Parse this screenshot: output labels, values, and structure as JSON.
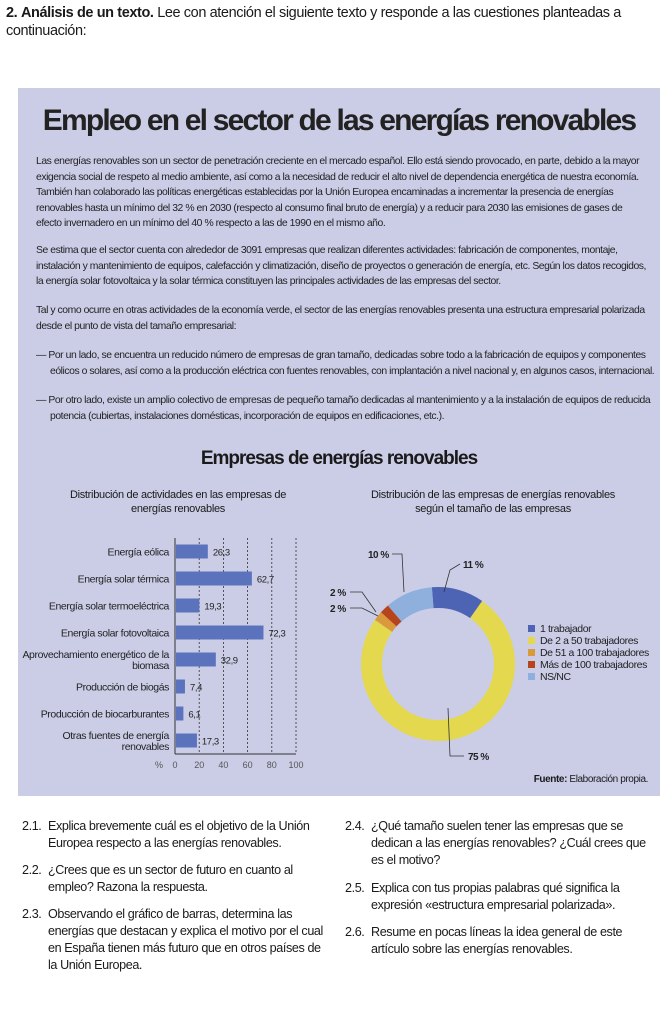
{
  "exercise": {
    "number": "2.",
    "heading": "Análisis de un texto.",
    "instruction": "Lee con atención el siguiente texto y responde a las cuestiones planteadas a continuación:"
  },
  "article": {
    "title": "Empleo en el sector de las energías renovables",
    "paragraphs": [
      "Las energías renovables son un sector de penetración creciente en el mercado español. Ello está siendo provocado, en parte, debido a la mayor exigencia social de respeto al medio ambiente, así como a la necesidad de reducir el alto nivel de dependencia energética de nuestra economía. También han colaborado las políticas energéticas establecidas por la Unión Europea encaminadas a incrementar la presencia de energías renovables hasta un mínimo del 32 % en 2030 (respecto al consumo final bruto de energía) y a reducir para 2030 las emisiones de gases de efecto invernadero en un mínimo del 40 % respecto a las de 1990 en el mismo año.",
      "Se estima que el sector cuenta con alrededor de 3091 empresas que realizan diferentes actividades: fabricación de componentes, montaje, instalación y mantenimiento de equipos, calefacción y climatización, diseño de proyectos o generación de energía, etc. Según los datos recogidos, la energía solar fotovoltaica y la solar térmica constituyen las principales actividades de las empresas del sector.",
      "Tal y como ocurre en otras actividades de la economía verde, el sector de las energías renovables presenta una estructura empresarial polarizada desde el punto de vista del tamaño empresarial:",
      "— Por un lado, se encuentra un reducido número de empresas de gran tamaño, dedicadas sobre todo a la fabricación de equipos y componentes eólicos o solares, así como a la producción eléctrica con fuentes renovables, con implantación a nivel nacional y, en algunos casos, internacional.",
      "— Por otro lado, existe un amplio colectivo de empresas de pequeño tamaño dedicadas al mantenimiento y a la instalación de equipos de reducida potencia (cubiertas, instalaciones domésticas, incorporación de equipos en edificaciones, etc.)."
    ],
    "charts_heading": "Empresas de energías renovables",
    "source_label": "Fuente:",
    "source_text": "Elaboración propia."
  },
  "chart_data": [
    {
      "type": "bar",
      "orientation": "horizontal",
      "title": "Distribución de actividades en las empresas de energías renovables",
      "categories": [
        "Energía eólica",
        "Energía solar térmica",
        "Energía solar termoeléctrica",
        "Energía solar fotovoltaica",
        "Aprovechamiento energético de la biomasa",
        "Producción de biogás",
        "Producción de biocarburantes",
        "Otras fuentes de energía renovables"
      ],
      "values": [
        26.3,
        62.7,
        19.3,
        72.3,
        32.9,
        7.4,
        6.1,
        17.3
      ],
      "value_labels": [
        "26,3",
        "62,7",
        "19,3",
        "72,3",
        "32,9",
        "7,4",
        "6,1",
        "17,3"
      ],
      "xlabel": "%",
      "xlim": [
        0,
        100
      ],
      "xticks": [
        "0",
        "20",
        "40",
        "60",
        "80",
        "100"
      ],
      "grid": "vertical dotted",
      "bar_color": "#5b73bd"
    },
    {
      "type": "pie",
      "style": "donut",
      "title": "Distribución de las empresas de energías renovables según el tamaño de las empresas",
      "slices": [
        {
          "name": "1 trabajador",
          "value": 11,
          "label": "11 %",
          "color": "#4d63b3"
        },
        {
          "name": "De 2 a 50 trabajadores",
          "value": 75,
          "label": "75 %",
          "color": "#e3d84e"
        },
        {
          "name": "De 51 a 100 trabajadores",
          "value": 2,
          "label": "2 %",
          "color": "#d99a3c"
        },
        {
          "name": "Más de 100 trabajadores",
          "value": 2,
          "label": "2 %",
          "color": "#b8441e"
        },
        {
          "name": "NS/NC",
          "value": 10,
          "label": "10 %",
          "color": "#8fb0dd"
        }
      ],
      "legend": "right"
    }
  ],
  "questions": [
    {
      "n": "2.1.",
      "text": "Explica brevemente cuál es el objetivo de la Unión Europea respecto a las energías renovables."
    },
    {
      "n": "2.2.",
      "text": "¿Crees que es un sector de futuro en cuanto al empleo? Razona la respuesta."
    },
    {
      "n": "2.3.",
      "text": "Observando el gráfico de barras, determina las energías que destacan y explica el motivo por el cual en España tienen más futuro que en otros países de la Unión Europea."
    },
    {
      "n": "2.4.",
      "text": "¿Qué tamaño suelen tener las empresas que se dedican a las energías renovables? ¿Cuál crees que es el motivo?"
    },
    {
      "n": "2.5.",
      "text": "Explica con tus propias palabras qué significa la expresión «estructura empresarial polarizada»."
    },
    {
      "n": "2.6.",
      "text": "Resume en pocas líneas la idea general de este artículo sobre las energías renovables."
    }
  ]
}
